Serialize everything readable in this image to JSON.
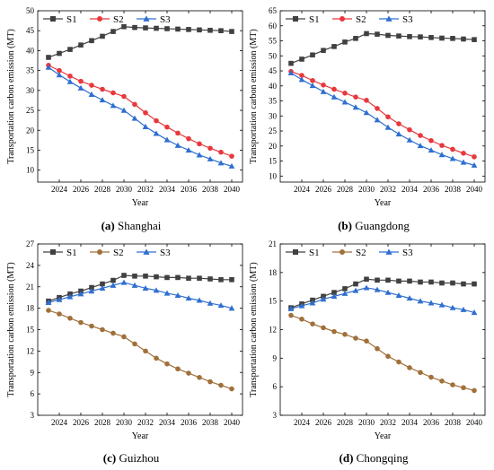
{
  "chart_data": [
    {
      "type": "line",
      "caption_letter": "(a)",
      "caption_name": "Shanghai",
      "xlabel": "Year",
      "ylabel": "Transportation carbon emission (MT)",
      "xlim": [
        2022,
        2041
      ],
      "ylim": [
        7,
        50
      ],
      "xticks": [
        2024,
        2026,
        2028,
        2030,
        2032,
        2034,
        2036,
        2038,
        2040
      ],
      "yticks": [
        10,
        15,
        20,
        25,
        30,
        35,
        40,
        45,
        50
      ],
      "legend": "top-left",
      "x": [
        2023,
        2024,
        2025,
        2026,
        2027,
        2028,
        2029,
        2030,
        2031,
        2032,
        2033,
        2034,
        2035,
        2036,
        2037,
        2038,
        2039,
        2040
      ],
      "series": [
        {
          "name": "S1",
          "color": "#404040",
          "marker": "square",
          "values": [
            38.3,
            39.3,
            40.3,
            41.4,
            42.5,
            43.6,
            44.8,
            46.0,
            45.8,
            45.7,
            45.6,
            45.5,
            45.4,
            45.3,
            45.2,
            45.1,
            45.0,
            44.8
          ]
        },
        {
          "name": "S2",
          "color": "#e8383d",
          "marker": "circle",
          "values": [
            36.3,
            35.0,
            33.6,
            32.3,
            31.3,
            30.3,
            29.4,
            28.5,
            26.5,
            24.4,
            22.4,
            20.8,
            19.3,
            17.9,
            16.6,
            15.5,
            14.5,
            13.5
          ]
        },
        {
          "name": "S3",
          "color": "#2f6fd0",
          "marker": "triangle",
          "values": [
            35.8,
            33.9,
            32.2,
            30.6,
            29.0,
            27.6,
            26.2,
            25.0,
            23.0,
            20.9,
            19.2,
            17.6,
            16.2,
            15.0,
            13.8,
            12.8,
            11.8,
            11.0
          ]
        }
      ]
    },
    {
      "type": "line",
      "caption_letter": "(b)",
      "caption_name": "Guangdong",
      "xlabel": "Year",
      "ylabel": "Transportation carbon emission (MT)",
      "xlim": [
        2022,
        2041
      ],
      "ylim": [
        8,
        65
      ],
      "xticks": [
        2024,
        2026,
        2028,
        2030,
        2032,
        2034,
        2036,
        2038,
        2040
      ],
      "yticks": [
        10,
        15,
        20,
        25,
        30,
        35,
        40,
        45,
        50,
        55,
        60,
        65
      ],
      "legend": "top-left",
      "x": [
        2023,
        2024,
        2025,
        2026,
        2027,
        2028,
        2029,
        2030,
        2031,
        2032,
        2033,
        2034,
        2035,
        2036,
        2037,
        2038,
        2039,
        2040
      ],
      "series": [
        {
          "name": "S1",
          "color": "#404040",
          "marker": "square",
          "values": [
            47.5,
            48.9,
            50.3,
            51.8,
            53.1,
            54.6,
            55.8,
            57.4,
            57.2,
            56.8,
            56.6,
            56.4,
            56.3,
            56.1,
            55.9,
            55.8,
            55.6,
            55.4
          ]
        },
        {
          "name": "S2",
          "color": "#e8383d",
          "marker": "circle",
          "values": [
            44.8,
            43.5,
            41.8,
            40.3,
            38.9,
            37.6,
            36.3,
            35.2,
            32.5,
            29.7,
            27.4,
            25.4,
            23.5,
            21.8,
            20.2,
            18.9,
            17.6,
            16.4
          ]
        },
        {
          "name": "S3",
          "color": "#2f6fd0",
          "marker": "triangle",
          "values": [
            44.3,
            42.1,
            40.1,
            38.1,
            36.3,
            34.6,
            32.9,
            31.1,
            28.7,
            26.2,
            24.0,
            22.0,
            20.1,
            18.6,
            17.1,
            15.8,
            14.6,
            13.6
          ]
        }
      ]
    },
    {
      "type": "line",
      "caption_letter": "(c)",
      "caption_name": "Guizhou",
      "xlabel": "Year",
      "ylabel": "Transportation carbon emission (MT)",
      "xlim": [
        2022,
        2041
      ],
      "ylim": [
        3,
        27
      ],
      "xticks": [
        2024,
        2026,
        2028,
        2030,
        2032,
        2034,
        2036,
        2038,
        2040
      ],
      "yticks": [
        3,
        6,
        9,
        12,
        15,
        18,
        21,
        24,
        27
      ],
      "legend": "top-left",
      "x": [
        2023,
        2024,
        2025,
        2026,
        2027,
        2028,
        2029,
        2030,
        2031,
        2032,
        2033,
        2034,
        2035,
        2036,
        2037,
        2038,
        2039,
        2040
      ],
      "series": [
        {
          "name": "S1",
          "color": "#404040",
          "marker": "square",
          "values": [
            19.0,
            19.5,
            20.0,
            20.4,
            20.9,
            21.4,
            21.9,
            22.6,
            22.5,
            22.5,
            22.4,
            22.3,
            22.3,
            22.2,
            22.2,
            22.1,
            22.0,
            22.0
          ]
        },
        {
          "name": "S2",
          "color": "#a0703a",
          "marker": "circle",
          "values": [
            17.7,
            17.2,
            16.6,
            16.0,
            15.5,
            15.0,
            14.5,
            14.0,
            13.0,
            12.0,
            11.0,
            10.2,
            9.5,
            8.9,
            8.3,
            7.7,
            7.2,
            6.7
          ]
        },
        {
          "name": "S3",
          "color": "#2f6fd0",
          "marker": "triangle",
          "values": [
            18.8,
            19.2,
            19.6,
            20.0,
            20.4,
            20.8,
            21.2,
            21.6,
            21.2,
            20.8,
            20.5,
            20.1,
            19.8,
            19.4,
            19.1,
            18.7,
            18.4,
            18.0
          ]
        }
      ]
    },
    {
      "type": "line",
      "caption_letter": "(d)",
      "caption_name": "Chongqing",
      "xlabel": "Year",
      "ylabel": "Transportation carbon emission (MT)",
      "xlim": [
        2022,
        2041
      ],
      "ylim": [
        3,
        21
      ],
      "xticks": [
        2024,
        2026,
        2028,
        2030,
        2032,
        2034,
        2036,
        2038,
        2040
      ],
      "yticks": [
        3,
        6,
        9,
        12,
        15,
        18,
        21
      ],
      "legend": "top-left",
      "x": [
        2023,
        2024,
        2025,
        2026,
        2027,
        2028,
        2029,
        2030,
        2031,
        2032,
        2033,
        2034,
        2035,
        2036,
        2037,
        2038,
        2039,
        2040
      ],
      "series": [
        {
          "name": "S1",
          "color": "#404040",
          "marker": "square",
          "values": [
            14.3,
            14.7,
            15.1,
            15.5,
            15.9,
            16.3,
            16.8,
            17.3,
            17.2,
            17.2,
            17.1,
            17.1,
            17.0,
            17.0,
            16.9,
            16.9,
            16.8,
            16.8
          ]
        },
        {
          "name": "S2",
          "color": "#a0703a",
          "marker": "circle",
          "values": [
            13.5,
            13.1,
            12.6,
            12.2,
            11.8,
            11.5,
            11.1,
            10.8,
            10.0,
            9.2,
            8.6,
            8.0,
            7.5,
            7.0,
            6.6,
            6.2,
            5.9,
            5.6
          ]
        },
        {
          "name": "S3",
          "color": "#2f6fd0",
          "marker": "triangle",
          "values": [
            14.2,
            14.5,
            14.8,
            15.2,
            15.5,
            15.8,
            16.1,
            16.4,
            16.2,
            15.9,
            15.6,
            15.3,
            15.0,
            14.8,
            14.6,
            14.3,
            14.1,
            13.8
          ]
        }
      ]
    }
  ]
}
